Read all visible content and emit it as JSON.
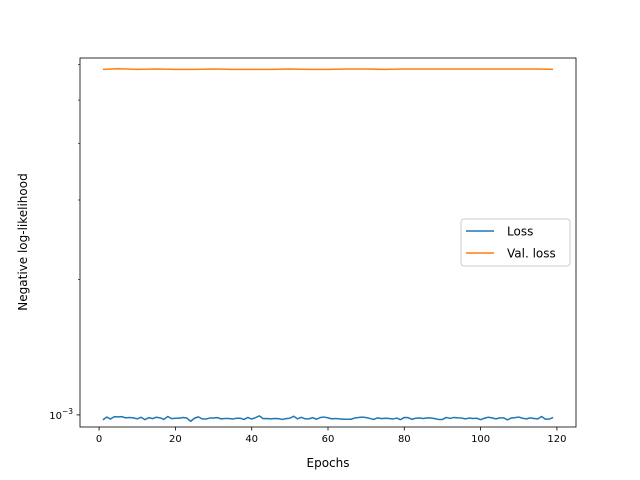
{
  "chart_data": {
    "type": "line",
    "xlabel": "Epochs",
    "ylabel": "Negative log-likelihood",
    "xlim": [
      -5,
      125
    ],
    "ylim": [
      0.00094,
      0.0062
    ],
    "yscale": "log",
    "xticks": [
      0,
      20,
      40,
      60,
      80,
      100,
      120
    ],
    "xtick_labels": [
      "0",
      "20",
      "40",
      "60",
      "80",
      "100",
      "120"
    ],
    "yticks": [
      0.001
    ],
    "ytick_labels": [
      "10^-3"
    ],
    "legend_position": "center-right",
    "series": [
      {
        "name": "Loss",
        "color": "#1f77b4",
        "x": [
          1,
          2,
          3,
          4,
          5,
          6,
          7,
          8,
          9,
          10,
          11,
          12,
          13,
          14,
          15,
          16,
          17,
          18,
          19,
          20,
          21,
          22,
          23,
          24,
          25,
          26,
          27,
          28,
          29,
          30,
          31,
          32,
          33,
          34,
          35,
          36,
          37,
          38,
          39,
          40,
          41,
          42,
          43,
          44,
          45,
          46,
          47,
          48,
          49,
          50,
          51,
          52,
          53,
          54,
          55,
          56,
          57,
          58,
          59,
          60,
          61,
          62,
          63,
          64,
          65,
          66,
          67,
          68,
          69,
          70,
          71,
          72,
          73,
          74,
          75,
          76,
          77,
          78,
          79,
          80,
          81,
          82,
          83,
          84,
          85,
          86,
          87,
          88,
          89,
          90,
          91,
          92,
          93,
          94,
          95,
          96,
          97,
          98,
          99,
          100,
          101,
          102,
          103,
          104,
          105,
          106,
          107,
          108,
          109,
          110,
          111,
          112,
          113,
          114,
          115,
          116,
          117,
          118,
          119
        ],
        "values": [
          0.000975,
          0.000989,
          0.000979,
          0.000991,
          0.00099,
          0.000991,
          0.000985,
          0.000987,
          0.000985,
          0.00098,
          0.000988,
          0.000976,
          0.000986,
          0.000981,
          0.000988,
          0.000985,
          0.000977,
          0.000992,
          0.000981,
          0.000983,
          0.000983,
          0.000987,
          0.000984,
          0.000968,
          0.000983,
          0.00099,
          0.00098,
          0.000979,
          0.000984,
          0.000984,
          0.000986,
          0.00098,
          0.000982,
          0.000982,
          0.000979,
          0.000983,
          0.000983,
          0.000977,
          0.000987,
          0.000979,
          0.000986,
          0.000995,
          0.000981,
          0.000982,
          0.00098,
          0.000982,
          0.000981,
          0.000977,
          0.000981,
          0.000983,
          0.000993,
          0.00098,
          0.000988,
          0.00098,
          0.00098,
          0.000986,
          0.000978,
          0.000987,
          0.000989,
          0.000985,
          0.00098,
          0.000982,
          0.00098,
          0.000978,
          0.000978,
          0.000978,
          0.000984,
          0.000987,
          0.000989,
          0.000986,
          0.000982,
          0.000977,
          0.000985,
          0.000981,
          0.000983,
          0.000982,
          0.000979,
          0.000984,
          0.000976,
          0.000987,
          0.000986,
          0.000978,
          0.000983,
          0.000984,
          0.000982,
          0.000985,
          0.000984,
          0.000981,
          0.000977,
          0.000977,
          0.000987,
          0.000982,
          0.000987,
          0.000985,
          0.000984,
          0.00098,
          0.000984,
          0.000982,
          0.000983,
          0.000976,
          0.000983,
          0.000988,
          0.000985,
          0.00098,
          0.000985,
          0.000985,
          0.000975,
          0.000984,
          0.000986,
          0.000989,
          0.000983,
          0.00098,
          0.000985,
          0.000982,
          0.00098,
          0.000992,
          0.000978,
          0.000979,
          0.000987
        ]
      },
      {
        "name": "Val. loss",
        "color": "#ff7f0e",
        "x": [
          1,
          5,
          10,
          15,
          20,
          25,
          30,
          35,
          40,
          45,
          50,
          55,
          60,
          65,
          70,
          75,
          80,
          85,
          90,
          95,
          100,
          105,
          110,
          115,
          119
        ],
        "values": [
          0.00585,
          0.00587,
          0.00585,
          0.00586,
          0.00585,
          0.00585,
          0.00586,
          0.00585,
          0.00585,
          0.00585,
          0.00586,
          0.00585,
          0.00585,
          0.00586,
          0.00586,
          0.00585,
          0.00586,
          0.00586,
          0.00586,
          0.00586,
          0.00586,
          0.00586,
          0.00586,
          0.00586,
          0.00585
        ]
      }
    ]
  }
}
